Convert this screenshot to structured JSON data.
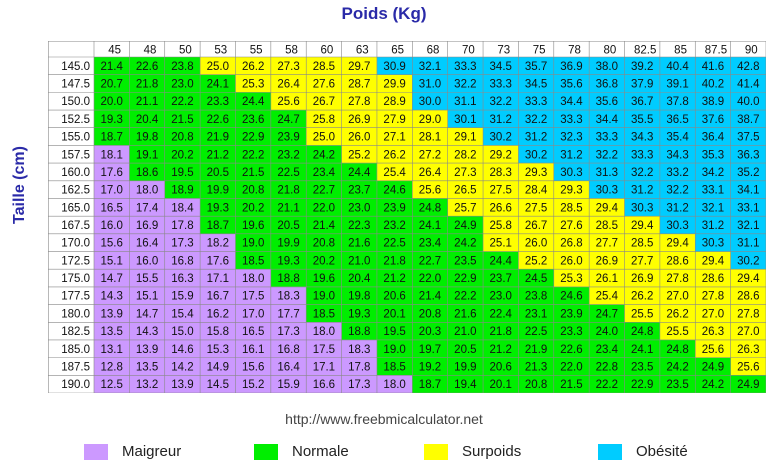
{
  "page": {
    "title": "Poids (Kg)",
    "ylabel": "Taille (cm)",
    "url": "http://www.freebmicalculator.net"
  },
  "chart_data": {
    "type": "heatmap",
    "title": "Poids (Kg)",
    "xlabel": "Poids (Kg)",
    "ylabel": "Taille (cm)",
    "x": [
      "45",
      "48",
      "50",
      "53",
      "55",
      "58",
      "60",
      "63",
      "65",
      "68",
      "70",
      "73",
      "75",
      "78",
      "80",
      "82.5",
      "85",
      "87.5",
      "90"
    ],
    "y": [
      "145.0",
      "147.5",
      "150.0",
      "152.5",
      "155.0",
      "157.5",
      "160.0",
      "162.5",
      "165.0",
      "167.5",
      "170.0",
      "172.5",
      "175.0",
      "177.5",
      "180.0",
      "182.5",
      "185.0",
      "187.5",
      "190.0"
    ],
    "values": [
      [
        "21.4",
        "22.6",
        "23.8",
        "25.0",
        "26.2",
        "27.3",
        "28.5",
        "29.7",
        "30.9",
        "32.1",
        "33.3",
        "34.5",
        "35.7",
        "36.9",
        "38.0",
        "39.2",
        "40.4",
        "41.6",
        "42.8"
      ],
      [
        "20.7",
        "21.8",
        "23.0",
        "24.1",
        "25.3",
        "26.4",
        "27.6",
        "28.7",
        "29.9",
        "31.0",
        "32.2",
        "33.3",
        "34.5",
        "35.6",
        "36.8",
        "37.9",
        "39.1",
        "40.2",
        "41.4"
      ],
      [
        "20.0",
        "21.1",
        "22.2",
        "23.3",
        "24.4",
        "25.6",
        "26.7",
        "27.8",
        "28.9",
        "30.0",
        "31.1",
        "32.2",
        "33.3",
        "34.4",
        "35.6",
        "36.7",
        "37.8",
        "38.9",
        "40.0"
      ],
      [
        "19.3",
        "20.4",
        "21.5",
        "22.6",
        "23.6",
        "24.7",
        "25.8",
        "26.9",
        "27.9",
        "29.0",
        "30.1",
        "31.2",
        "32.2",
        "33.3",
        "34.4",
        "35.5",
        "36.5",
        "37.6",
        "38.7"
      ],
      [
        "18.7",
        "19.8",
        "20.8",
        "21.9",
        "22.9",
        "23.9",
        "25.0",
        "26.0",
        "27.1",
        "28.1",
        "29.1",
        "30.2",
        "31.2",
        "32.3",
        "33.3",
        "34.3",
        "35.4",
        "36.4",
        "37.5"
      ],
      [
        "18.1",
        "19.1",
        "20.2",
        "21.2",
        "22.2",
        "23.2",
        "24.2",
        "25.2",
        "26.2",
        "27.2",
        "28.2",
        "29.2",
        "30.2",
        "31.2",
        "32.2",
        "33.3",
        "34.3",
        "35.3",
        "36.3"
      ],
      [
        "17.6",
        "18.6",
        "19.5",
        "20.5",
        "21.5",
        "22.5",
        "23.4",
        "24.4",
        "25.4",
        "26.4",
        "27.3",
        "28.3",
        "29.3",
        "30.3",
        "31.3",
        "32.2",
        "33.2",
        "34.2",
        "35.2"
      ],
      [
        "17.0",
        "18.0",
        "18.9",
        "19.9",
        "20.8",
        "21.8",
        "22.7",
        "23.7",
        "24.6",
        "25.6",
        "26.5",
        "27.5",
        "28.4",
        "29.3",
        "30.3",
        "31.2",
        "32.2",
        "33.1",
        "34.1"
      ],
      [
        "16.5",
        "17.4",
        "18.4",
        "19.3",
        "20.2",
        "21.1",
        "22.0",
        "23.0",
        "23.9",
        "24.8",
        "25.7",
        "26.6",
        "27.5",
        "28.5",
        "29.4",
        "30.3",
        "31.2",
        "32.1",
        "33.1"
      ],
      [
        "16.0",
        "16.9",
        "17.8",
        "18.7",
        "19.6",
        "20.5",
        "21.4",
        "22.3",
        "23.2",
        "24.1",
        "24.9",
        "25.8",
        "26.7",
        "27.6",
        "28.5",
        "29.4",
        "30.3",
        "31.2",
        "32.1"
      ],
      [
        "15.6",
        "16.4",
        "17.3",
        "18.2",
        "19.0",
        "19.9",
        "20.8",
        "21.6",
        "22.5",
        "23.4",
        "24.2",
        "25.1",
        "26.0",
        "26.8",
        "27.7",
        "28.5",
        "29.4",
        "30.3",
        "31.1"
      ],
      [
        "15.1",
        "16.0",
        "16.8",
        "17.6",
        "18.5",
        "19.3",
        "20.2",
        "21.0",
        "21.8",
        "22.7",
        "23.5",
        "24.4",
        "25.2",
        "26.0",
        "26.9",
        "27.7",
        "28.6",
        "29.4",
        "30.2"
      ],
      [
        "14.7",
        "15.5",
        "16.3",
        "17.1",
        "18.0",
        "18.8",
        "19.6",
        "20.4",
        "21.2",
        "22.0",
        "22.9",
        "23.7",
        "24.5",
        "25.3",
        "26.1",
        "26.9",
        "27.8",
        "28.6",
        "29.4"
      ],
      [
        "14.3",
        "15.1",
        "15.9",
        "16.7",
        "17.5",
        "18.3",
        "19.0",
        "19.8",
        "20.6",
        "21.4",
        "22.2",
        "23.0",
        "23.8",
        "24.6",
        "25.4",
        "26.2",
        "27.0",
        "27.8",
        "28.6"
      ],
      [
        "13.9",
        "14.7",
        "15.4",
        "16.2",
        "17.0",
        "17.7",
        "18.5",
        "19.3",
        "20.1",
        "20.8",
        "21.6",
        "22.4",
        "23.1",
        "23.9",
        "24.7",
        "25.5",
        "26.2",
        "27.0",
        "27.8"
      ],
      [
        "13.5",
        "14.3",
        "15.0",
        "15.8",
        "16.5",
        "17.3",
        "18.0",
        "18.8",
        "19.5",
        "20.3",
        "21.0",
        "21.8",
        "22.5",
        "23.3",
        "24.0",
        "24.8",
        "25.5",
        "26.3",
        "27.0"
      ],
      [
        "13.1",
        "13.9",
        "14.6",
        "15.3",
        "16.1",
        "16.8",
        "17.5",
        "18.3",
        "19.0",
        "19.7",
        "20.5",
        "21.2",
        "21.9",
        "22.6",
        "23.4",
        "24.1",
        "24.8",
        "25.6",
        "26.3"
      ],
      [
        "12.8",
        "13.5",
        "14.2",
        "14.9",
        "15.6",
        "16.4",
        "17.1",
        "17.8",
        "18.5",
        "19.2",
        "19.9",
        "20.6",
        "21.3",
        "22.0",
        "22.8",
        "23.5",
        "24.2",
        "24.9",
        "25.6"
      ],
      [
        "12.5",
        "13.2",
        "13.9",
        "14.5",
        "15.2",
        "15.9",
        "16.6",
        "17.3",
        "18.0",
        "18.7",
        "19.4",
        "20.1",
        "20.8",
        "21.5",
        "22.2",
        "22.9",
        "23.5",
        "24.2",
        "24.9"
      ]
    ],
    "categories": [
      {
        "name": "Maigreur",
        "color": "#cc99ff",
        "max": 18.5
      },
      {
        "name": "Normale",
        "color": "#00ee00",
        "min": 18.5,
        "max": 25
      },
      {
        "name": "Surpoids",
        "color": "#ffff00",
        "min": 25,
        "max": 30
      },
      {
        "name": "Obésité",
        "color": "#00ccff",
        "min": 30
      }
    ],
    "legend": "bottom",
    "grid": true
  },
  "colors": {
    "title": "#2a2aa8",
    "grid_line": "#888888",
    "header_bg": "#ffffff"
  }
}
